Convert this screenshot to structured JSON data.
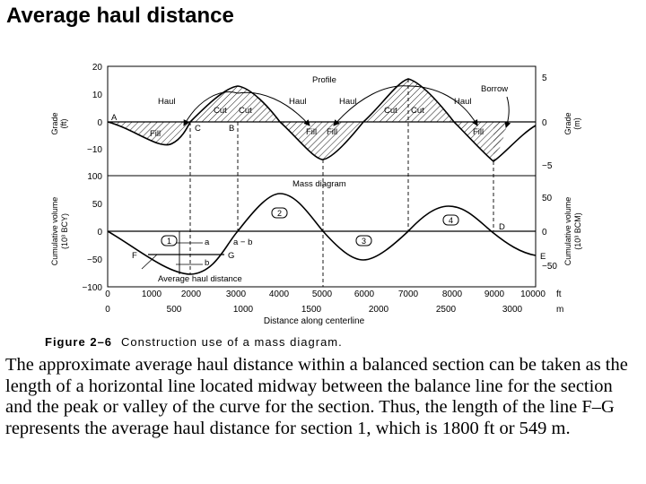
{
  "slide": {
    "title": "Average haul distance"
  },
  "figure": {
    "top_left_y_ticks": [
      "20",
      "10",
      "0",
      "−10"
    ],
    "bottom_left_y_ticks": [
      "100",
      "50",
      "0",
      "−50",
      "−100"
    ],
    "right_top_y_ticks": [
      "5",
      "0",
      "−5"
    ],
    "right_bottom_y_ticks": [
      "50",
      "0",
      "−50"
    ],
    "left_top_axis_label": "Grade",
    "left_top_axis_unit": "(ft)",
    "right_top_axis_label": "Grade",
    "right_top_axis_unit": "(m)",
    "left_bottom_axis_label": "Cumulative volume",
    "left_bottom_axis_unit": "(10³ BCY)",
    "right_bottom_axis_label": "Cumulative volume",
    "right_bottom_axis_unit": "(10³ BCM)",
    "x_ticks_ft": [
      "0",
      "1000",
      "2000",
      "3000",
      "4000",
      "5000",
      "6000",
      "7000",
      "8000",
      "9000",
      "10000"
    ],
    "x_unit_ft": "ft",
    "x_ticks_m": [
      "0",
      "500",
      "1000",
      "1500",
      "2000",
      "2500",
      "3000"
    ],
    "x_unit_m": "m",
    "x_axis_label": "Distance along centerline",
    "profile_label": "Profile",
    "mass_diagram_label": "Mass diagram",
    "haul_label": "Haul",
    "cut_label": "Cut",
    "fill_label": "Fill",
    "borrow_label": "Borrow",
    "point_labels": {
      "A": "A",
      "B": "B",
      "C": "C",
      "D": "D",
      "E": "E",
      "F": "F",
      "G": "G",
      "a": "a",
      "b": "b"
    },
    "a_minus_b": "a − b",
    "avg_haul_label": "Average haul distance",
    "section_numbers": [
      "1",
      "2",
      "3",
      "4"
    ]
  },
  "caption": {
    "label": "Figure 2–6",
    "text": "Construction use of a mass diagram."
  },
  "paragraph": "The approximate average haul distance within a balanced section can be taken as the length of a horizontal line located midway between the balance line for the section and the peak or valley of the curve for the section. Thus, the length of the line F–G represents the average haul distance for section 1, which is 1800 ft or 549 m."
}
